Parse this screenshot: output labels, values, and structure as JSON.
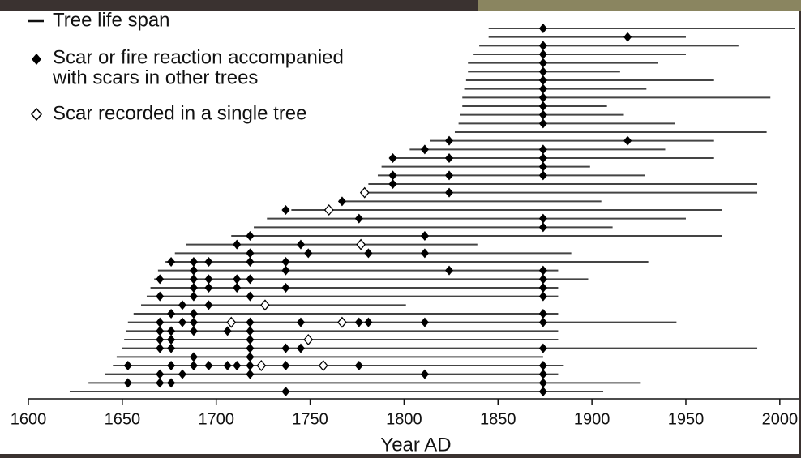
{
  "chart_data": {
    "type": "fire-history",
    "x_label": "Year AD",
    "xlim": [
      1600,
      2010
    ],
    "xticks": [
      1600,
      1650,
      1700,
      1750,
      1800,
      1850,
      1900,
      1950,
      2000
    ],
    "span_color": "#444444",
    "scar_color": "#000000",
    "single_color": "#ffffff",
    "legend": {
      "span": [
        "Tree life span"
      ],
      "scar": [
        "Scar or fire reaction accompanied",
        "with scars in other trees"
      ],
      "single": [
        "Scar recorded in a single tree"
      ]
    },
    "trees": [
      {
        "span": [
          1845,
          2008
        ],
        "scars": [
          1874
        ],
        "single": []
      },
      {
        "span": [
          1845,
          1950
        ],
        "scars": [
          1919
        ],
        "single": []
      },
      {
        "span": [
          1840,
          1978
        ],
        "scars": [
          1874
        ],
        "single": []
      },
      {
        "span": [
          1837,
          1950
        ],
        "scars": [
          1874
        ],
        "single": []
      },
      {
        "span": [
          1834,
          1935
        ],
        "scars": [
          1874
        ],
        "single": []
      },
      {
        "span": [
          1834,
          1915
        ],
        "scars": [
          1874
        ],
        "single": []
      },
      {
        "span": [
          1833,
          1965
        ],
        "scars": [
          1874
        ],
        "single": []
      },
      {
        "span": [
          1832,
          1929
        ],
        "scars": [
          1874
        ],
        "single": []
      },
      {
        "span": [
          1831,
          1995
        ],
        "scars": [
          1874
        ],
        "single": []
      },
      {
        "span": [
          1831,
          1908
        ],
        "scars": [
          1874
        ],
        "single": []
      },
      {
        "span": [
          1830,
          1917
        ],
        "scars": [
          1874
        ],
        "single": []
      },
      {
        "span": [
          1829,
          1944
        ],
        "scars": [
          1874
        ],
        "single": []
      },
      {
        "span": [
          1827,
          1993
        ],
        "scars": [],
        "single": []
      },
      {
        "span": [
          1814,
          1965
        ],
        "scars": [
          1824,
          1919
        ],
        "single": []
      },
      {
        "span": [
          1803,
          1939
        ],
        "scars": [
          1811,
          1874
        ],
        "single": []
      },
      {
        "span": [
          1794,
          1965
        ],
        "scars": [
          1794,
          1824,
          1874
        ],
        "single": []
      },
      {
        "span": [
          1788,
          1899
        ],
        "scars": [
          1874
        ],
        "single": []
      },
      {
        "span": [
          1786,
          1928
        ],
        "scars": [
          1794,
          1824,
          1874
        ],
        "single": []
      },
      {
        "span": [
          1781,
          1988
        ],
        "scars": [
          1794
        ],
        "single": []
      },
      {
        "span": [
          1777,
          1988
        ],
        "scars": [
          1824
        ],
        "single": [
          1779
        ]
      },
      {
        "span": [
          1766,
          1905
        ],
        "scars": [
          1767
        ],
        "single": []
      },
      {
        "span": [
          1740,
          1969
        ],
        "scars": [
          1737
        ],
        "single": [
          1760
        ]
      },
      {
        "span": [
          1727,
          1950
        ],
        "scars": [
          1776,
          1874
        ],
        "single": []
      },
      {
        "span": [
          1720,
          1911
        ],
        "scars": [
          1874
        ],
        "single": []
      },
      {
        "span": [
          1708,
          1969
        ],
        "scars": [
          1718,
          1811
        ],
        "single": []
      },
      {
        "span": [
          1684,
          1839
        ],
        "scars": [
          1711,
          1745
        ],
        "single": [
          1777
        ]
      },
      {
        "span": [
          1678,
          1889
        ],
        "scars": [
          1718,
          1749,
          1781,
          1811
        ],
        "single": []
      },
      {
        "span": [
          1673,
          1930
        ],
        "scars": [
          1676,
          1688,
          1696,
          1718,
          1737
        ],
        "single": []
      },
      {
        "span": [
          1669,
          1882
        ],
        "scars": [
          1688,
          1737,
          1824,
          1874
        ],
        "single": []
      },
      {
        "span": [
          1667,
          1898
        ],
        "scars": [
          1670,
          1688,
          1696,
          1711,
          1718,
          1874
        ],
        "single": []
      },
      {
        "span": [
          1665,
          1882
        ],
        "scars": [
          1688,
          1696,
          1711,
          1737,
          1874
        ],
        "single": []
      },
      {
        "span": [
          1663,
          1882
        ],
        "scars": [
          1670,
          1688,
          1718,
          1874
        ],
        "single": []
      },
      {
        "span": [
          1660,
          1801
        ],
        "scars": [
          1682,
          1696
        ],
        "single": [
          1726
        ]
      },
      {
        "span": [
          1656,
          1882
        ],
        "scars": [
          1676,
          1688,
          1874
        ],
        "single": []
      },
      {
        "span": [
          1653,
          1945
        ],
        "scars": [
          1670,
          1682,
          1688,
          1718,
          1745,
          1776,
          1781,
          1811,
          1874
        ],
        "single": [
          1708,
          1767
        ]
      },
      {
        "span": [
          1652,
          1882
        ],
        "scars": [
          1670,
          1676,
          1688,
          1706,
          1718
        ],
        "single": []
      },
      {
        "span": [
          1651,
          1882
        ],
        "scars": [
          1670,
          1676,
          1718
        ],
        "single": [
          1749
        ]
      },
      {
        "span": [
          1650,
          1988
        ],
        "scars": [
          1670,
          1676,
          1718,
          1737,
          1745,
          1874
        ],
        "single": []
      },
      {
        "span": [
          1647,
          1874
        ],
        "scars": [
          1688,
          1718
        ],
        "single": []
      },
      {
        "span": [
          1645,
          1885
        ],
        "scars": [
          1653,
          1676,
          1688,
          1696,
          1706,
          1711,
          1718,
          1737,
          1776,
          1874
        ],
        "single": [
          1724,
          1757
        ]
      },
      {
        "span": [
          1641,
          1882
        ],
        "scars": [
          1670,
          1682,
          1718,
          1811,
          1874
        ],
        "single": []
      },
      {
        "span": [
          1632,
          1926
        ],
        "scars": [
          1653,
          1670,
          1676,
          1874
        ],
        "single": []
      },
      {
        "span": [
          1622,
          1906
        ],
        "scars": [
          1737,
          1874
        ],
        "single": []
      }
    ]
  }
}
